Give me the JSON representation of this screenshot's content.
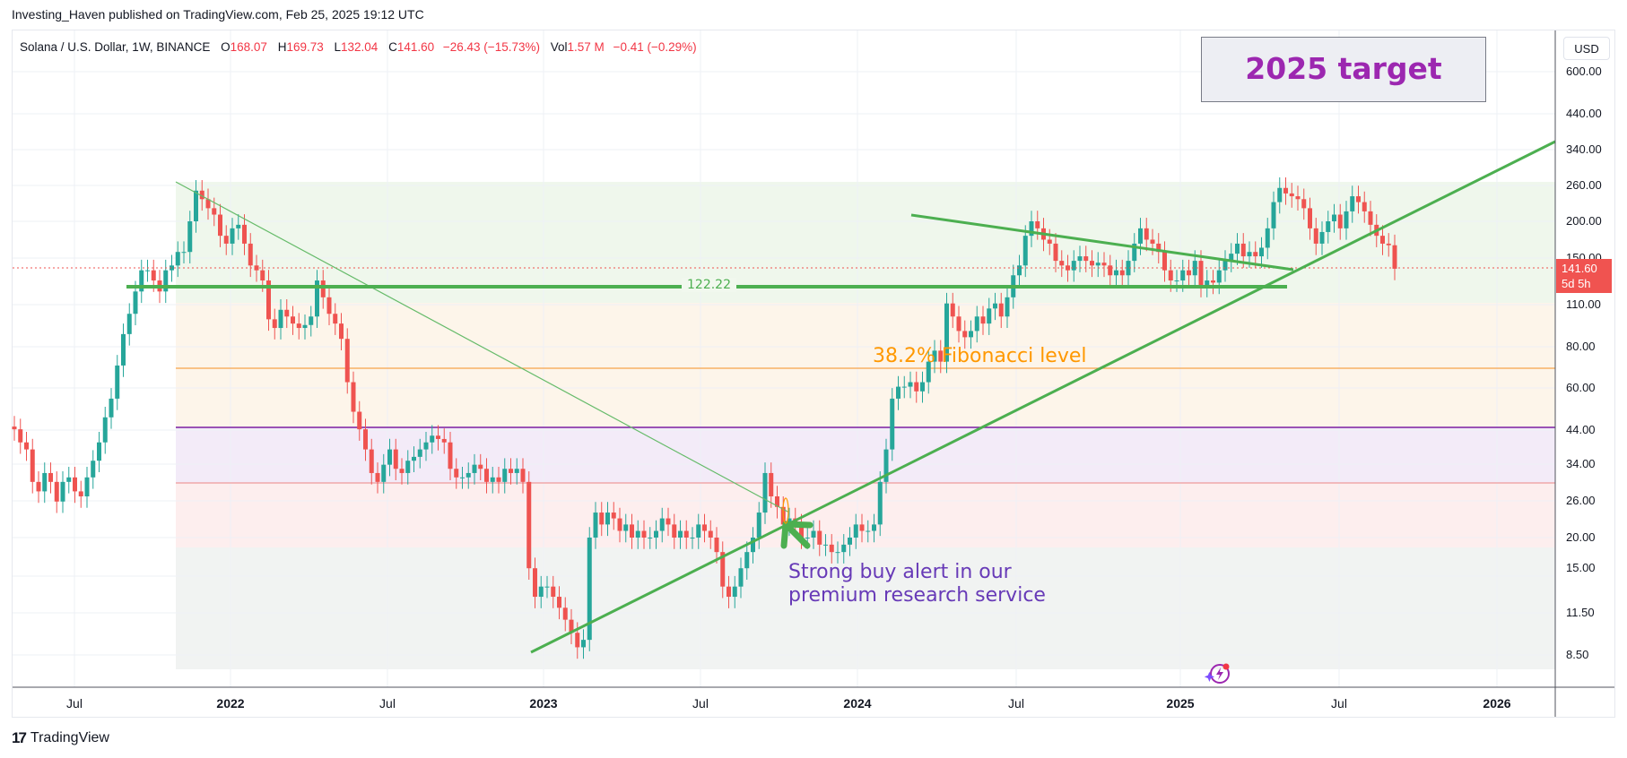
{
  "header": {
    "published": "Investing_Haven published on TradingView.com, Feb 25, 2025 19:12 UTC"
  },
  "legend": {
    "symbol": "Solana / U.S. Dollar, 1W, BINANCE",
    "open_label": "O",
    "open": "168.07",
    "high_label": "H",
    "high": "169.73",
    "low_label": "L",
    "low": "132.04",
    "close_label": "C",
    "close": "141.60",
    "change": "−26.43 (−15.73%)",
    "vol_label": "Vol",
    "vol": "1.57 M",
    "vol_change": "−0.41 (−0.29%)"
  },
  "price_axis": {
    "currency": "USD",
    "last_price": "141.60",
    "countdown": "5d 5h"
  },
  "annotations": {
    "target_box": "2025 target",
    "fib_label": "38.2% Fibonacci level",
    "alert_line1": "Strong buy alert in our",
    "alert_line2": "premium research service",
    "support_level": "122.22"
  },
  "footer": {
    "brand": "TradingView",
    "logo_mark": "17"
  },
  "colors": {
    "up": "#26a69a",
    "down": "#ef5350",
    "trendline": "#4caf50",
    "target_text": "#9c27b0",
    "fib_text": "#ff9800",
    "alert_text": "#673ab7"
  },
  "chart_data": {
    "type": "candlestick",
    "title": "Solana / U.S. Dollar, 1W, BINANCE",
    "xlabel": "",
    "ylabel": "USD",
    "scale": "log",
    "y_ticks": [
      "600.00",
      "440.00",
      "340.00",
      "260.00",
      "200.00",
      "150.00",
      "110.00",
      "80.00",
      "60.00",
      "44.00",
      "34.00",
      "26.00",
      "20.00",
      "15.00",
      "11.50",
      "8.50"
    ],
    "x_ticks": [
      "Jul",
      "2022",
      "Jul",
      "2023",
      "Jul",
      "2024",
      "Jul",
      "2025",
      "Jul",
      "2026"
    ],
    "ylim": [
      7.5,
      700
    ],
    "last": {
      "open": 168.07,
      "high": 169.73,
      "low": 132.04,
      "close": 141.6
    },
    "horizontal_levels": [
      {
        "label": "122.22",
        "value": 122.22,
        "color": "#4caf50"
      },
      {
        "label": "38.2% Fibonacci level",
        "value": 68,
        "color": "#ff9800"
      },
      {
        "value": 44,
        "color": "#7b1fa2"
      },
      {
        "value": 30.5,
        "color": "#ef9a9a"
      }
    ],
    "fib_zones": [
      {
        "from": 258,
        "to": 107,
        "color": "#eef7ea"
      },
      {
        "from": 107,
        "to": 44,
        "color": "#fdf5ea"
      },
      {
        "from": 44,
        "to": 30.5,
        "color": "#f3ebf8"
      },
      {
        "from": 30.5,
        "to": 18,
        "color": "#fdeeee"
      },
      {
        "from": 18,
        "to": 7.8,
        "color": "#f0f2f2"
      }
    ],
    "trendlines": [
      {
        "name": "rising-support",
        "from": [
          "2022-12-26",
          8.2
        ],
        "to": [
          "2026-02",
          360
        ]
      },
      {
        "name": "descending-resistance",
        "from": [
          "2024-03",
          205
        ],
        "to": [
          "2025-05",
          145
        ]
      },
      {
        "name": "2021-downtrend",
        "from": [
          "2021-11",
          258
        ],
        "to": [
          "2023-10",
          23
        ]
      }
    ],
    "closes": [
      44,
      40,
      38,
      30,
      28,
      32,
      30,
      26,
      30,
      31,
      28,
      27,
      31,
      35,
      40,
      48,
      55,
      70,
      88,
      102,
      120,
      140,
      140,
      130,
      120,
      140,
      145,
      160,
      160,
      200,
      250,
      235,
      220,
      210,
      180,
      170,
      190,
      195,
      170,
      145,
      140,
      130,
      98,
      92,
      105,
      100,
      95,
      92,
      94,
      100,
      130,
      115,
      102,
      95,
      85,
      62,
      50,
      44,
      38,
      32,
      30,
      34,
      38,
      33,
      32,
      35,
      36,
      38,
      40,
      42,
      41,
      40,
      33,
      31,
      31,
      32,
      34,
      33,
      30,
      31,
      30,
      33,
      32,
      33,
      30,
      16,
      13,
      14,
      14,
      13,
      12,
      11,
      10,
      9,
      9.5,
      20,
      24,
      22,
      24,
      23,
      21,
      22,
      20,
      21,
      20,
      20,
      21,
      23,
      22,
      20,
      21,
      20,
      20,
      22,
      21,
      20,
      18,
      14,
      13,
      14,
      16,
      18,
      20,
      24,
      32,
      27,
      25,
      22,
      23,
      22,
      20,
      20,
      21,
      19,
      19,
      18,
      18,
      19,
      20,
      22,
      21,
      21,
      22,
      30,
      38,
      55,
      60,
      60,
      62,
      58,
      62,
      72,
      78,
      72,
      110,
      100,
      90,
      86,
      90,
      100,
      95,
      106,
      110,
      100,
      115,
      135,
      145,
      180,
      200,
      190,
      175,
      170,
      150,
      145,
      140,
      150,
      155,
      150,
      145,
      148,
      145,
      135,
      140,
      135,
      150,
      170,
      190,
      175,
      170,
      160,
      140,
      130,
      130,
      140,
      135,
      150,
      125,
      130,
      128,
      140,
      150,
      158,
      170,
      155,
      160,
      155,
      165,
      190,
      230,
      255,
      245,
      240,
      235,
      220,
      190,
      170,
      185,
      200,
      210,
      190,
      215,
      240,
      230,
      215,
      195,
      180,
      170,
      168,
      141.6
    ]
  }
}
